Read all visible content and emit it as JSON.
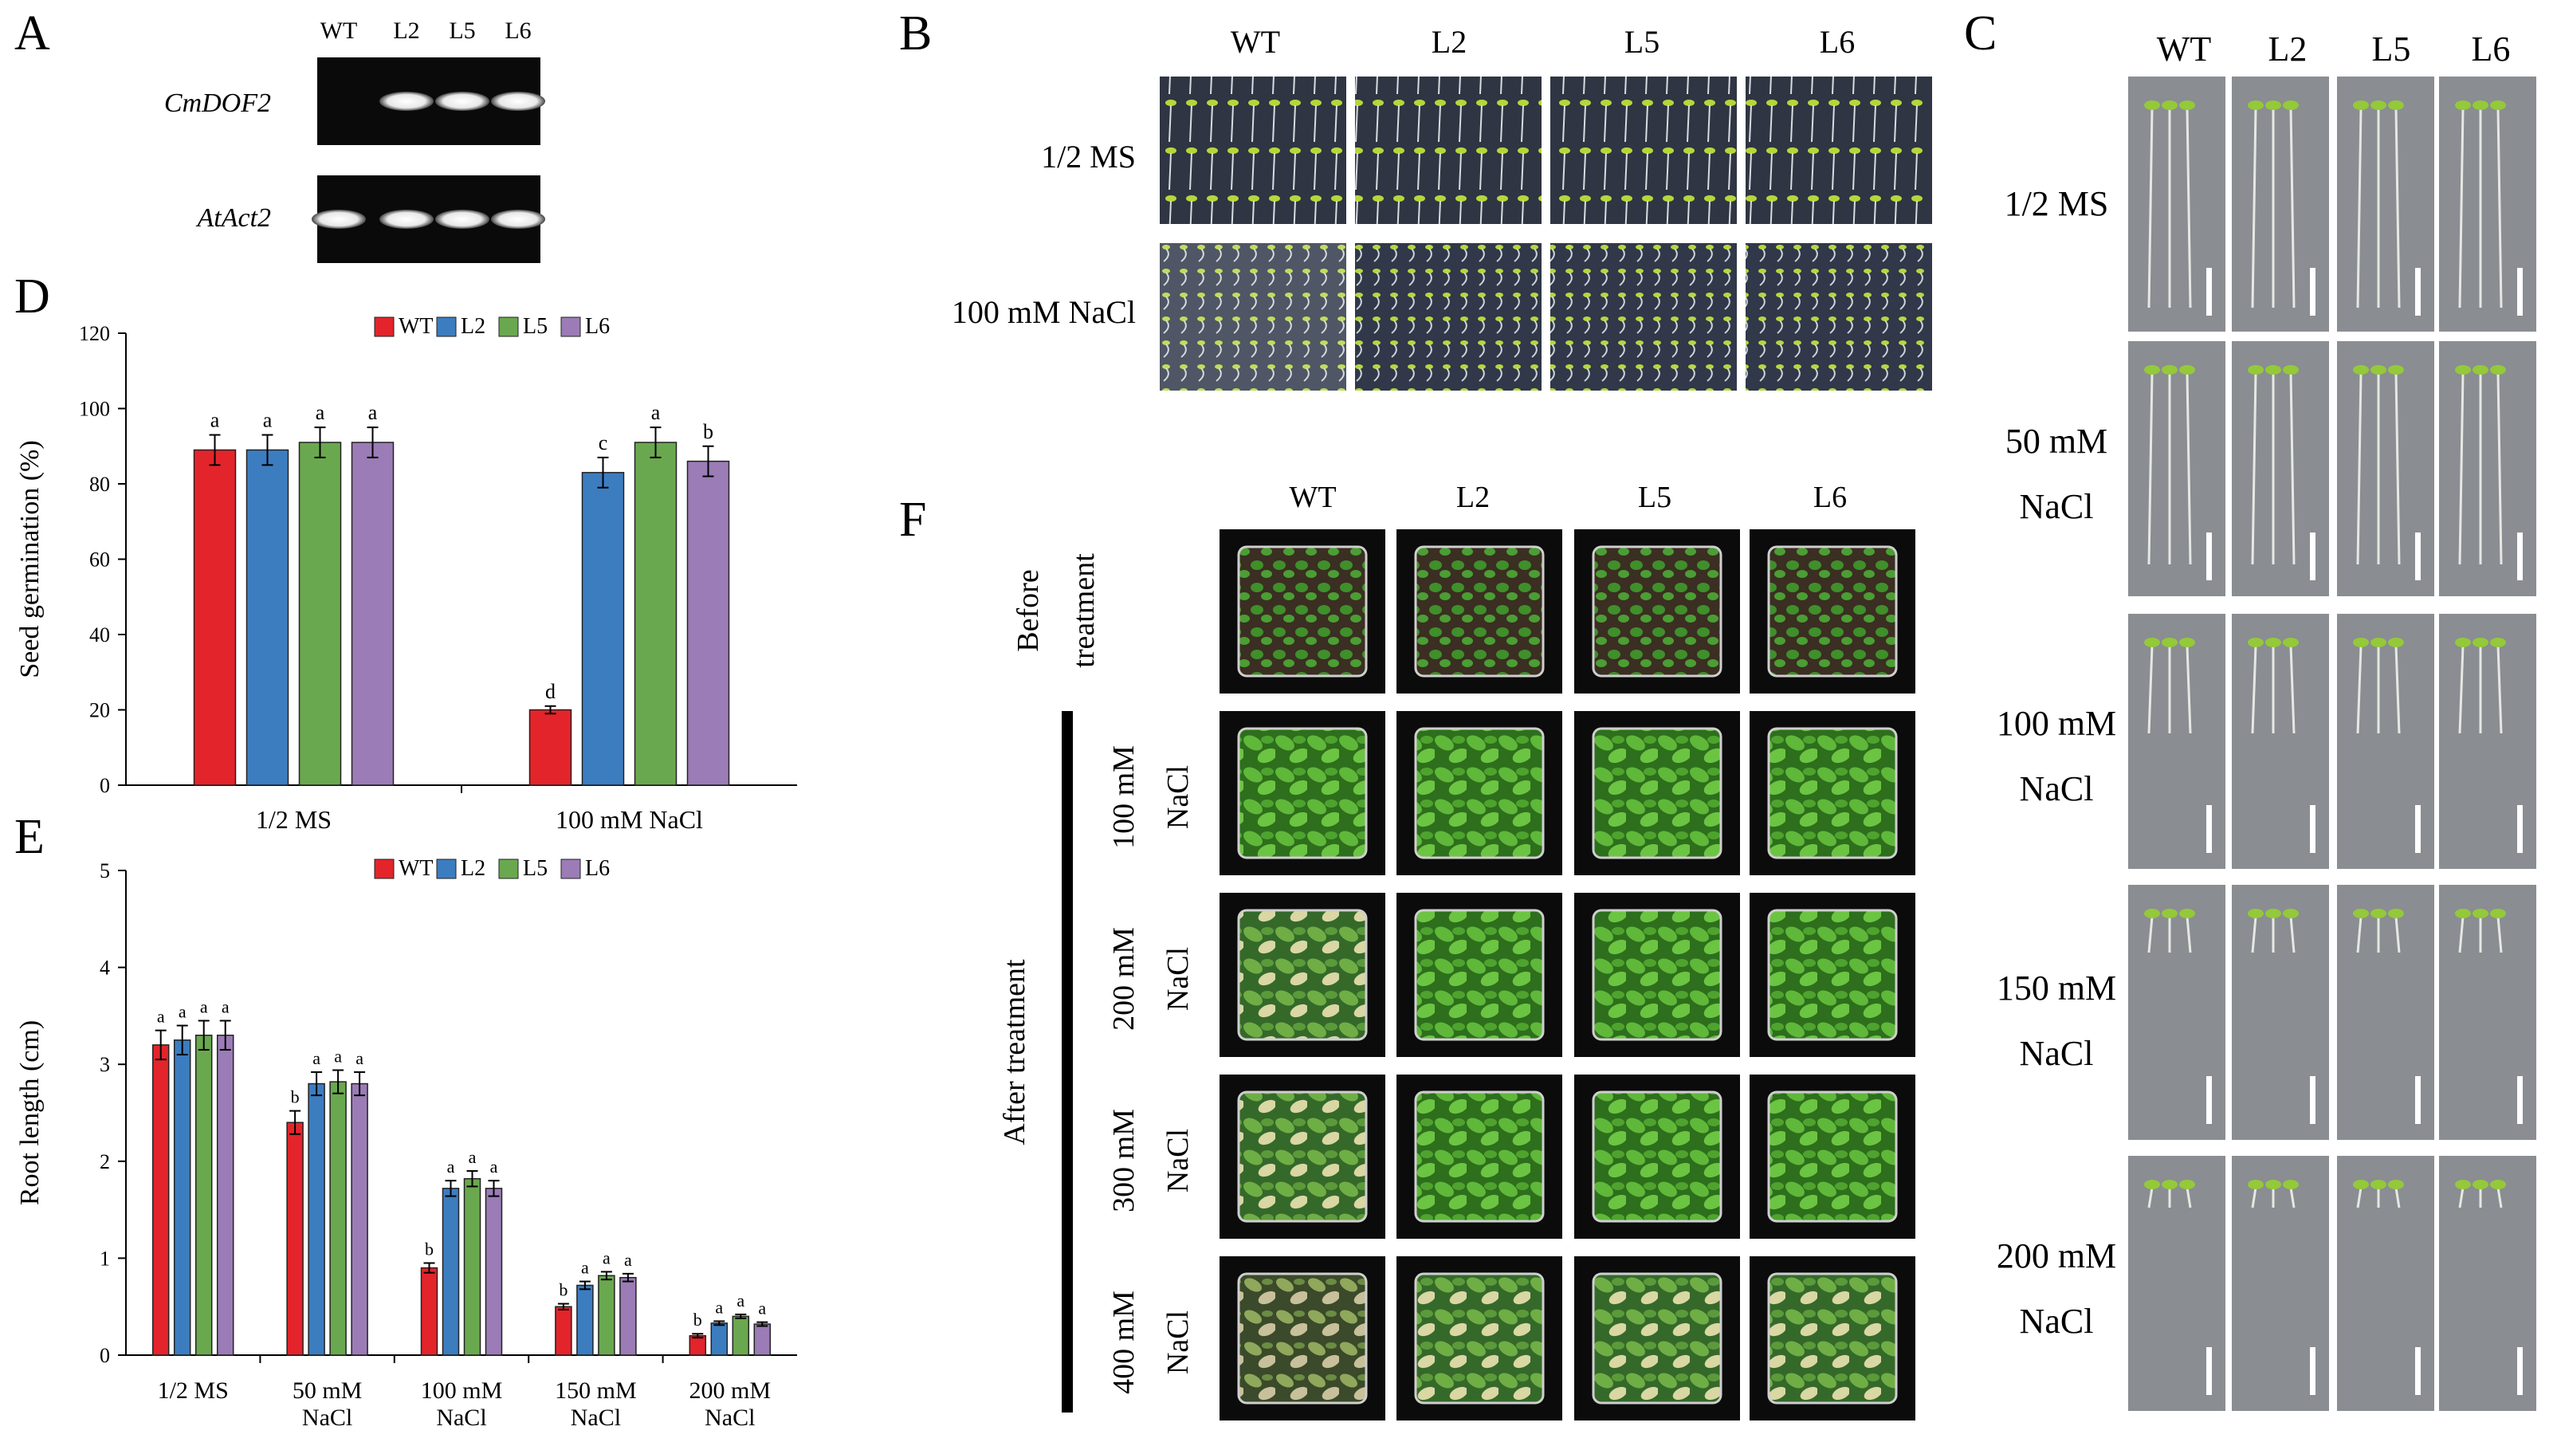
{
  "panel_letters": {
    "A": "A",
    "B": "B",
    "C": "C",
    "D": "D",
    "E": "E",
    "F": "F"
  },
  "genotypes": [
    "WT",
    "L2",
    "L5",
    "L6"
  ],
  "colors": {
    "WT": "#e3242b",
    "L2": "#3c7dc0",
    "L5": "#6aa84f",
    "L6": "#9b7cb6"
  },
  "panel_a": {
    "lane_labels": [
      "WT",
      "L2",
      "L5",
      "L6"
    ],
    "gel_rows": [
      {
        "label": "CmDOF2",
        "bands": [
          0,
          1,
          1,
          1
        ]
      },
      {
        "label": "AtAct2",
        "bands": [
          1,
          1,
          1,
          1
        ]
      }
    ]
  },
  "panel_b": {
    "columns": [
      "WT",
      "L2",
      "L5",
      "L6"
    ],
    "rows": [
      "1/2 MS",
      "100 mM NaCl"
    ]
  },
  "panel_c": {
    "columns": [
      "WT",
      "L2",
      "L5",
      "L6"
    ],
    "rows": [
      {
        "line1": "1/2 MS",
        "line2": ""
      },
      {
        "line1": "50 mM",
        "line2": "NaCl"
      },
      {
        "line1": "100 mM",
        "line2": "NaCl"
      },
      {
        "line1": "150 mM",
        "line2": "NaCl"
      },
      {
        "line1": "200 mM",
        "line2": "NaCl"
      }
    ]
  },
  "panel_f": {
    "columns": [
      "WT",
      "L2",
      "L5",
      "L6"
    ],
    "before_label": [
      "Before",
      "treatment"
    ],
    "after_label": "After treatment",
    "rows": [
      {
        "line1": "100 mM",
        "line2": "NaCl"
      },
      {
        "line1": "200 mM",
        "line2": "NaCl"
      },
      {
        "line1": "300 mM",
        "line2": "NaCl"
      },
      {
        "line1": "400 mM",
        "line2": "NaCl"
      }
    ]
  },
  "chart_data": [
    {
      "panel": "D",
      "type": "bar",
      "categories": [
        "1/2 MS",
        "100 mM NaCl"
      ],
      "ylabel": "Seed germination (%)",
      "xlabel": "",
      "ylim": [
        0,
        120
      ],
      "yticks": [
        0,
        20,
        40,
        60,
        80,
        100,
        120
      ],
      "legend": "top-center",
      "series": [
        {
          "name": "WT",
          "values": [
            89,
            20
          ],
          "errors": [
            4,
            1
          ],
          "letters": [
            "a",
            "d"
          ]
        },
        {
          "name": "L2",
          "values": [
            89,
            83
          ],
          "errors": [
            4,
            4
          ],
          "letters": [
            "a",
            "c"
          ]
        },
        {
          "name": "L5",
          "values": [
            91,
            91
          ],
          "errors": [
            4,
            4
          ],
          "letters": [
            "a",
            "a"
          ]
        },
        {
          "name": "L6",
          "values": [
            91,
            86
          ],
          "errors": [
            4,
            4
          ],
          "letters": [
            "a",
            "b"
          ]
        }
      ]
    },
    {
      "panel": "E",
      "type": "bar",
      "categories": [
        [
          "1/2 MS"
        ],
        [
          "50 mM",
          "NaCl"
        ],
        [
          "100 mM",
          "NaCl"
        ],
        [
          "150 mM",
          "NaCl"
        ],
        [
          "200 mM",
          "NaCl"
        ]
      ],
      "ylabel": "Root length (cm)",
      "xlabel": "",
      "ylim": [
        0,
        5
      ],
      "yticks": [
        0,
        1,
        2,
        3,
        4,
        5
      ],
      "legend": "top-center",
      "series": [
        {
          "name": "WT",
          "values": [
            3.2,
            2.4,
            0.9,
            0.5,
            0.2
          ],
          "errors": [
            0.15,
            0.12,
            0.05,
            0.03,
            0.02
          ],
          "letters": [
            "a",
            "b",
            "b",
            "b",
            "b"
          ]
        },
        {
          "name": "L2",
          "values": [
            3.25,
            2.8,
            1.72,
            0.72,
            0.33
          ],
          "errors": [
            0.15,
            0.12,
            0.08,
            0.04,
            0.02
          ],
          "letters": [
            "a",
            "a",
            "a",
            "a",
            "a"
          ]
        },
        {
          "name": "L5",
          "values": [
            3.3,
            2.82,
            1.82,
            0.82,
            0.4
          ],
          "errors": [
            0.15,
            0.12,
            0.08,
            0.04,
            0.02
          ],
          "letters": [
            "a",
            "a",
            "a",
            "a",
            "a"
          ]
        },
        {
          "name": "L6",
          "values": [
            3.3,
            2.8,
            1.72,
            0.8,
            0.32
          ],
          "errors": [
            0.15,
            0.12,
            0.08,
            0.04,
            0.02
          ],
          "letters": [
            "a",
            "a",
            "a",
            "a",
            "a"
          ]
        }
      ]
    }
  ]
}
